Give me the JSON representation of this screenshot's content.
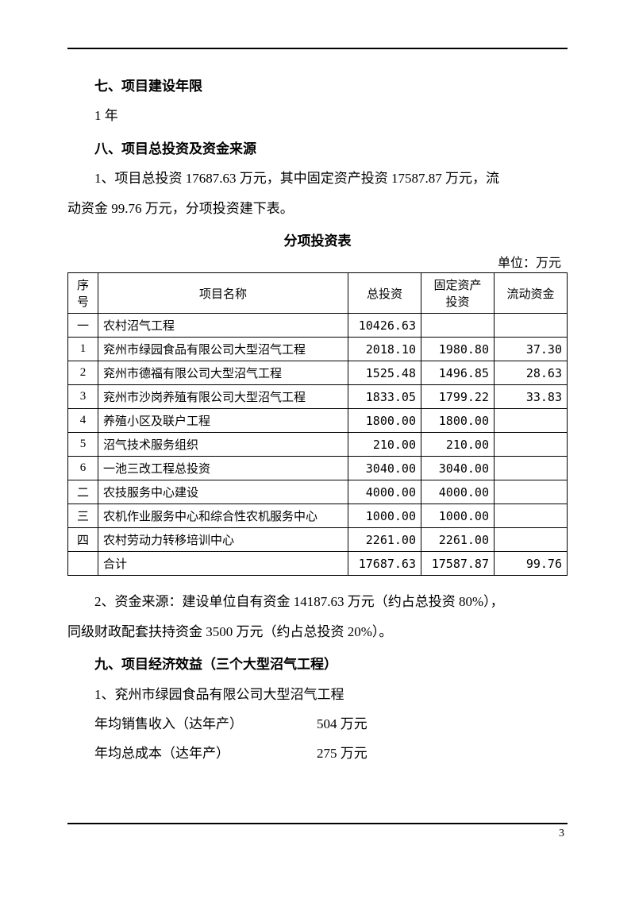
{
  "colors": {
    "text": "#000000",
    "background": "#ffffff",
    "rule": "#000000",
    "table_border": "#000000"
  },
  "typography": {
    "body_fontsize_pt": 12,
    "heading_fontsize_pt": 12,
    "table_fontsize_pt": 11,
    "font_family": "SimSun"
  },
  "section7": {
    "heading": "七、项目建设年限",
    "body": "1 年"
  },
  "section8": {
    "heading": "八、项目总投资及资金来源",
    "para1a": "1、项目总投资 17687.63 万元，其中固定资产投资 17587.87 万元，流",
    "para1b": "动资金 99.76 万元，分项投资建下表。",
    "table_title": "分项投资表",
    "table_unit": "单位：万元",
    "columns": [
      "序号",
      "项目名称",
      "总投资",
      "固定资产投资",
      "流动资金"
    ],
    "col_header_seq_top": "序",
    "col_header_seq_bottom": "号",
    "col_header_name": "项目名称",
    "col_header_total": "总投资",
    "col_header_fixed_top": "固定资产",
    "col_header_fixed_bottom": "投资",
    "col_header_liquid": "流动资金",
    "rows": [
      {
        "seq": "一",
        "name": "农村沼气工程",
        "total": "10426.63",
        "fixed": "",
        "liquid": ""
      },
      {
        "seq": "1",
        "name": "兖州市绿园食品有限公司大型沼气工程",
        "total": "2018.10",
        "fixed": "1980.80",
        "liquid": "37.30"
      },
      {
        "seq": "2",
        "name": "兖州市德福有限公司大型沼气工程",
        "total": "1525.48",
        "fixed": "1496.85",
        "liquid": "28.63"
      },
      {
        "seq": "3",
        "name": "兖州市沙岗养殖有限公司大型沼气工程",
        "total": "1833.05",
        "fixed": "1799.22",
        "liquid": "33.83"
      },
      {
        "seq": "4",
        "name": "养殖小区及联户工程",
        "total": "1800.00",
        "fixed": "1800.00",
        "liquid": ""
      },
      {
        "seq": "5",
        "name": "沼气技术服务组织",
        "total": "210.00",
        "fixed": "210.00",
        "liquid": ""
      },
      {
        "seq": "6",
        "name": "一池三改工程总投资",
        "total": "3040.00",
        "fixed": "3040.00",
        "liquid": ""
      },
      {
        "seq": "二",
        "name": "农技服务中心建设",
        "total": "4000.00",
        "fixed": "4000.00",
        "liquid": ""
      },
      {
        "seq": "三",
        "name": "农机作业服务中心和综合性农机服务中心",
        "total": "1000.00",
        "fixed": "1000.00",
        "liquid": ""
      },
      {
        "seq": "四",
        "name": "农村劳动力转移培训中心",
        "total": "2261.00",
        "fixed": "2261.00",
        "liquid": ""
      },
      {
        "seq": "",
        "name": "合计",
        "total": "17687.63",
        "fixed": "17587.87",
        "liquid": "99.76"
      }
    ],
    "para2a": "2、资金来源：建设单位自有资金 14187.63 万元（约占总投资 80%），",
    "para2b": "同级财政配套扶持资金 3500 万元（约占总投资 20%）。"
  },
  "section9": {
    "heading": "九、项目经济效益（三个大型沼气工程）",
    "item1_title": "1、兖州市绿园食品有限公司大型沼气工程",
    "rows": [
      {
        "label": "年均销售收入（达年产）",
        "value": "504 万元"
      },
      {
        "label": "年均总成本（达年产）",
        "value": "275 万元"
      }
    ]
  },
  "page_number": "3"
}
